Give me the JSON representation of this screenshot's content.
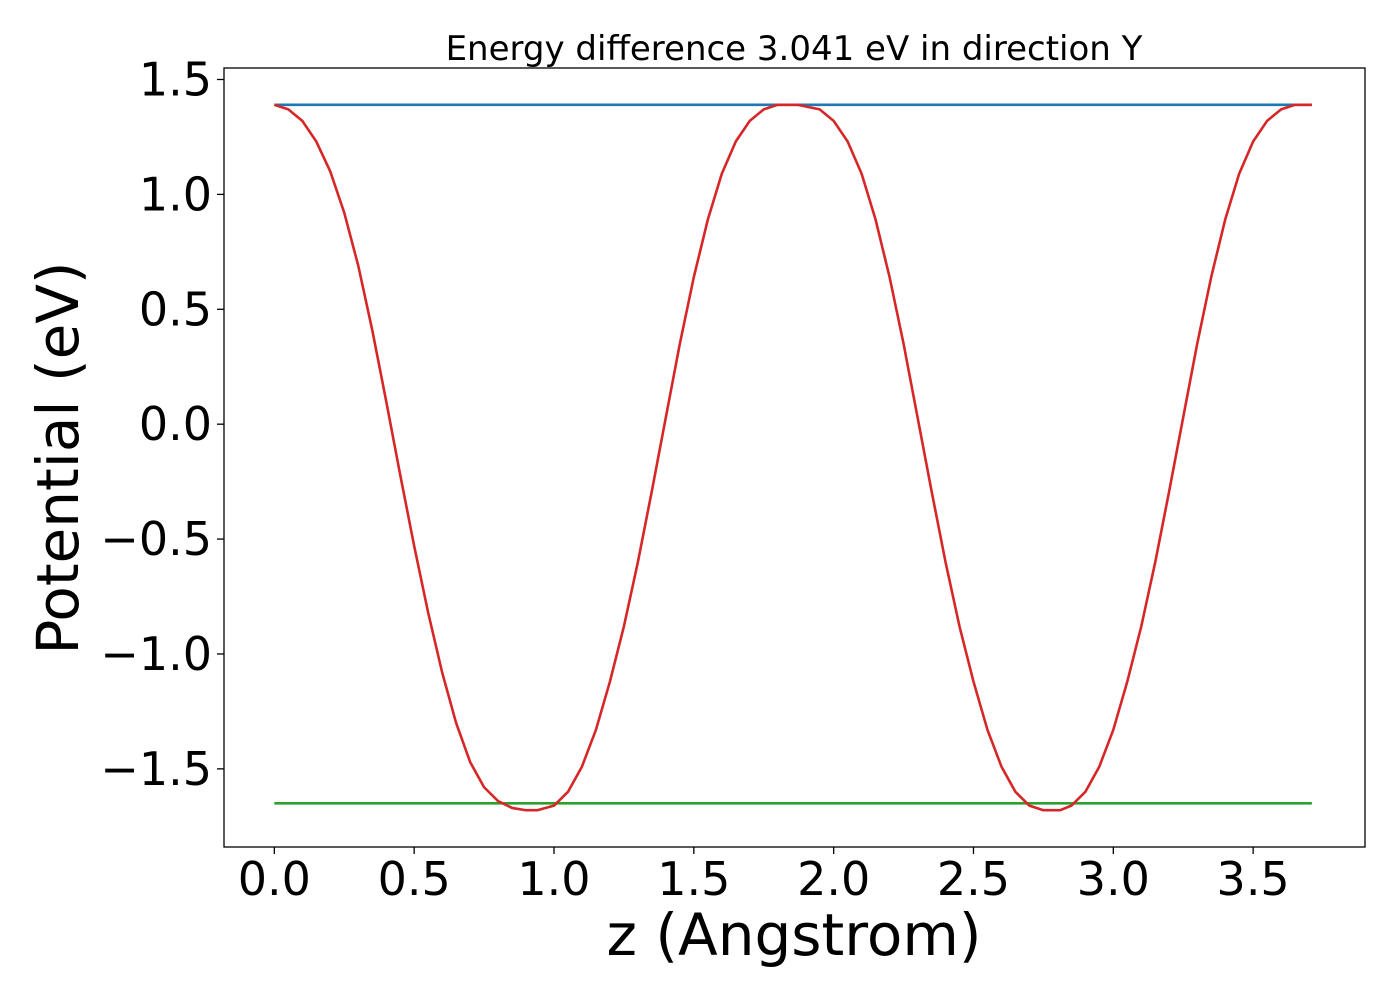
{
  "chart_data": {
    "type": "line",
    "title": "Energy difference 3.041 eV in direction Y",
    "xlabel": "z (Angstrom)",
    "ylabel": "Potential (eV)",
    "xlim": [
      -0.18,
      3.9
    ],
    "ylim": [
      -1.84,
      1.55
    ],
    "xticks": [
      0.0,
      0.5,
      1.0,
      1.5,
      2.0,
      2.5,
      3.0,
      3.5
    ],
    "xtick_labels": [
      "0.0",
      "0.5",
      "1.0",
      "1.5",
      "2.0",
      "2.5",
      "3.0",
      "3.5"
    ],
    "yticks": [
      1.5,
      1.0,
      0.5,
      0.0,
      -0.5,
      -1.0,
      -1.5
    ],
    "ytick_labels": [
      "1.5",
      "1.0",
      "0.5",
      "0.0",
      "−0.5",
      "−1.0",
      "−1.5"
    ],
    "grid": false,
    "legend": "none",
    "series": [
      {
        "color": "#1f77b4",
        "x": [
          0.0,
          3.71
        ],
        "y": [
          1.39,
          1.39
        ]
      },
      {
        "color": "#2ca02c",
        "x": [
          0.0,
          3.71
        ],
        "y": [
          -1.65,
          -1.65
        ]
      },
      {
        "color": "#d62728",
        "x": [
          0.0,
          0.05,
          0.1,
          0.15,
          0.2,
          0.25,
          0.3,
          0.35,
          0.4,
          0.45,
          0.5,
          0.55,
          0.6,
          0.65,
          0.7,
          0.75,
          0.8,
          0.85,
          0.9,
          0.94,
          1.0,
          1.05,
          1.1,
          1.15,
          1.2,
          1.25,
          1.3,
          1.35,
          1.4,
          1.45,
          1.5,
          1.55,
          1.6,
          1.65,
          1.7,
          1.75,
          1.8,
          1.87,
          1.95,
          2.0,
          2.05,
          2.1,
          2.15,
          2.2,
          2.25,
          2.3,
          2.35,
          2.4,
          2.45,
          2.5,
          2.55,
          2.6,
          2.65,
          2.7,
          2.75,
          2.81,
          2.85,
          2.9,
          2.95,
          3.0,
          3.05,
          3.1,
          3.15,
          3.2,
          3.25,
          3.3,
          3.35,
          3.4,
          3.45,
          3.5,
          3.55,
          3.6,
          3.65,
          3.71
        ],
        "y": [
          1.39,
          1.37,
          1.32,
          1.23,
          1.1,
          0.92,
          0.69,
          0.41,
          0.1,
          -0.22,
          -0.53,
          -0.82,
          -1.08,
          -1.3,
          -1.47,
          -1.58,
          -1.64,
          -1.67,
          -1.68,
          -1.68,
          -1.66,
          -1.6,
          -1.49,
          -1.33,
          -1.12,
          -0.88,
          -0.6,
          -0.29,
          0.03,
          0.35,
          0.64,
          0.89,
          1.09,
          1.23,
          1.32,
          1.37,
          1.39,
          1.39,
          1.37,
          1.32,
          1.23,
          1.09,
          0.89,
          0.64,
          0.35,
          0.03,
          -0.29,
          -0.6,
          -0.88,
          -1.12,
          -1.33,
          -1.49,
          -1.6,
          -1.66,
          -1.68,
          -1.68,
          -1.66,
          -1.6,
          -1.49,
          -1.33,
          -1.12,
          -0.88,
          -0.6,
          -0.29,
          0.03,
          0.35,
          0.64,
          0.89,
          1.09,
          1.23,
          1.32,
          1.37,
          1.39,
          1.39
        ]
      }
    ]
  }
}
